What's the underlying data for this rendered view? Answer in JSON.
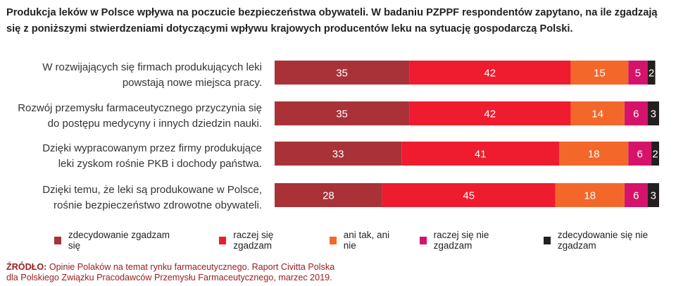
{
  "title": "Produkcja leków w Polsce wpływa na poczucie bezpieczeństwa obywateli. W badaniu PZPPF respondentów zapytano, na ile zgadzają się z poniższymi stwierdzeniami dotyczącymi wpływu krajowych producentów leku na sytuację gospodarczą Polski.",
  "source": {
    "label": "ŹRÓDŁO:",
    "line1": "Opinie Polaków na temat rynku farmaceutycznego. Raport Civitta Polska",
    "line2": "dla Polskiego Związku Pracodawców Przemysłu Farmaceutycznego, marzec 2019."
  },
  "chart_data": {
    "type": "bar",
    "orientation": "horizontal",
    "stacked": true,
    "xlim": [
      0,
      100
    ],
    "grid": false,
    "legend_position": "bottom",
    "categories": [
      [
        "W rozwijających się firmach produkujących leki",
        "powstają nowe miejsca pracy."
      ],
      [
        "Rozwój przemysłu farmaceutycznego przyczynia się",
        "do postępu medycyny i innych dziedzin nauki."
      ],
      [
        "Dzięki wypracowanym przez firmy produkujące",
        "leki zyskom rośnie PKB i dochody państwa."
      ],
      [
        "Dzięki temu, że leki są produkowane w Polsce,",
        "rośnie bezpieczeństwo zdrowotne obywateli."
      ]
    ],
    "series": [
      {
        "name": "zdecydowanie zgadzam się",
        "color": "#a83238",
        "values": [
          35,
          35,
          33,
          28
        ]
      },
      {
        "name": "raczej się zgadzam",
        "color": "#ee1c2e",
        "values": [
          42,
          42,
          41,
          45
        ]
      },
      {
        "name": "ani tak, ani nie",
        "color": "#f3682a",
        "values": [
          15,
          14,
          18,
          18
        ]
      },
      {
        "name": "raczej się nie zgadzam",
        "color": "#d6136a",
        "values": [
          5,
          6,
          6,
          6
        ]
      },
      {
        "name": "zdecydowanie się nie zgadzam",
        "color": "#231f20",
        "values": [
          2,
          3,
          2,
          3
        ]
      }
    ]
  }
}
